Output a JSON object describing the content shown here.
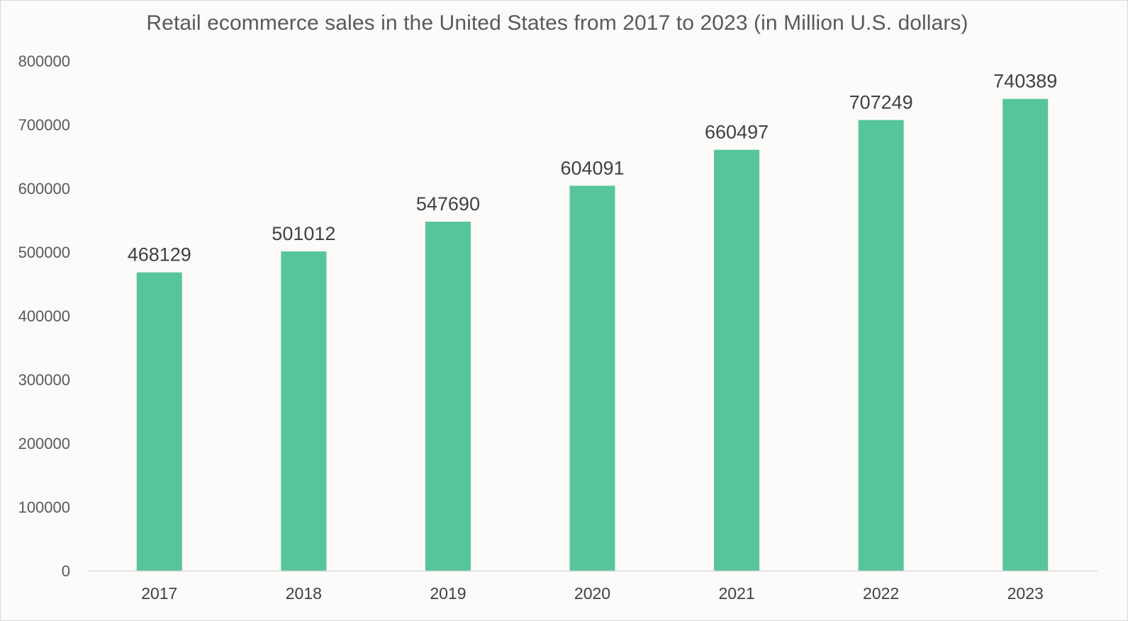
{
  "chart_data": {
    "type": "bar",
    "title": "Retail ecommerce sales in the United States from 2017 to 2023 (in Million U.S. dollars)",
    "xlabel": "",
    "ylabel": "",
    "categories": [
      "2017",
      "2018",
      "2019",
      "2020",
      "2021",
      "2022",
      "2023"
    ],
    "values": [
      468129,
      501012,
      547690,
      604091,
      660497,
      707249,
      740389
    ],
    "ylim": [
      0,
      800000
    ],
    "yticks": [
      "0",
      "100000",
      "200000",
      "300000",
      "400000",
      "500000",
      "600000",
      "700000",
      "800000"
    ],
    "data_labels": [
      "468129",
      "501012",
      "547690",
      "604091",
      "660497",
      "707249",
      "740389"
    ],
    "grid": false,
    "legend": "none",
    "bar_color": "#57c59a",
    "axis_color": "#d9d9d9",
    "background": "#fcfbf9"
  }
}
